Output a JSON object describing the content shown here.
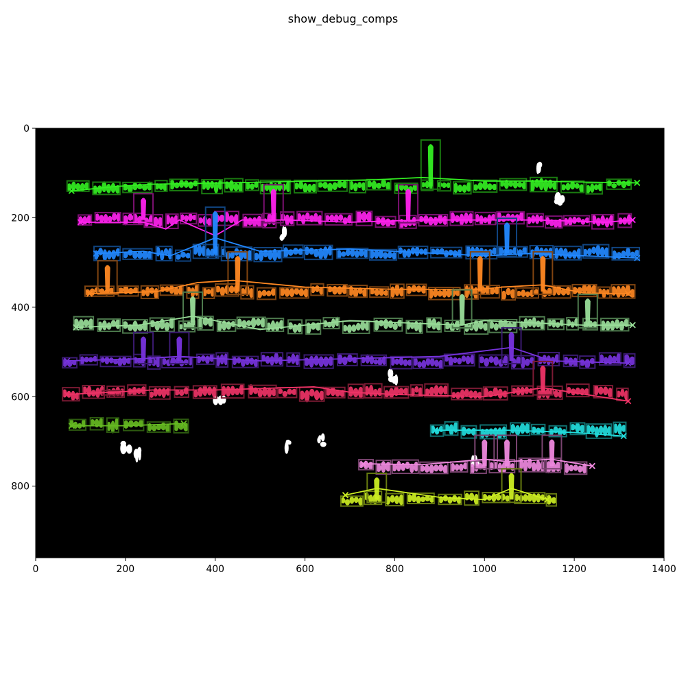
{
  "figure": {
    "title": "show_debug_comps"
  },
  "chart_data": {
    "type": "scatter",
    "title": "show_debug_comps",
    "xlabel": "",
    "ylabel": "",
    "xlim": [
      0,
      1400
    ],
    "ylim": [
      960,
      0
    ],
    "grid": false,
    "background": "#000000",
    "x_ticks": [
      0,
      200,
      400,
      600,
      800,
      1000,
      1200,
      1400
    ],
    "y_ticks": [
      0,
      200,
      400,
      600,
      800
    ],
    "series": [
      {
        "color": "#33ee22",
        "edge": "#1a7a10",
        "y": 130,
        "x0": 70,
        "x1": 1340,
        "path": [
          [
            80,
            140
          ],
          [
            180,
            130
          ],
          [
            260,
            125
          ],
          [
            380,
            123
          ],
          [
            520,
            120
          ],
          [
            760,
            115
          ],
          [
            860,
            110
          ],
          [
            1000,
            118
          ],
          [
            1120,
            118
          ],
          [
            1200,
            120
          ],
          [
            1340,
            122
          ]
        ],
        "tall": [
          [
            880,
            60
          ]
        ]
      },
      {
        "color": "#ff22ee",
        "edge": "#7a1070",
        "y": 205,
        "x0": 95,
        "x1": 1330,
        "path": [
          [
            100,
            210
          ],
          [
            240,
            210
          ],
          [
            290,
            225
          ],
          [
            320,
            205
          ],
          [
            400,
            240
          ],
          [
            460,
            205
          ],
          [
            560,
            205
          ],
          [
            700,
            210
          ],
          [
            860,
            205
          ],
          [
            1000,
            205
          ],
          [
            1120,
            205
          ],
          [
            1270,
            210
          ],
          [
            1330,
            205
          ]
        ],
        "tall": [
          [
            240,
            180
          ],
          [
            530,
            160
          ],
          [
            830,
            160
          ]
        ]
      },
      {
        "color": "#2288ff",
        "edge": "#104480",
        "y": 280,
        "x0": 130,
        "x1": 1345,
        "path": [
          [
            135,
            280
          ],
          [
            240,
            275
          ],
          [
            300,
            285
          ],
          [
            400,
            245
          ],
          [
            500,
            275
          ],
          [
            700,
            270
          ],
          [
            1000,
            285
          ],
          [
            1100,
            280
          ],
          [
            1340,
            290
          ]
        ],
        "tall": [
          [
            400,
            210
          ],
          [
            1050,
            235
          ]
        ]
      },
      {
        "color": "#ff8822",
        "edge": "#804410",
        "y": 365,
        "x0": 110,
        "x1": 1335,
        "path": [
          [
            120,
            370
          ],
          [
            270,
            365
          ],
          [
            360,
            345
          ],
          [
            440,
            340
          ],
          [
            600,
            355
          ],
          [
            800,
            360
          ],
          [
            990,
            360
          ],
          [
            1040,
            355
          ],
          [
            1130,
            350
          ],
          [
            1220,
            368
          ],
          [
            1320,
            370
          ]
        ],
        "tall": [
          [
            160,
            330
          ],
          [
            450,
            310
          ],
          [
            990,
            310
          ],
          [
            1130,
            310
          ]
        ]
      },
      {
        "color": "#99dd99",
        "edge": "#4d7a4d",
        "y": 440,
        "x0": 85,
        "x1": 1335,
        "path": [
          [
            90,
            445
          ],
          [
            230,
            440
          ],
          [
            350,
            420
          ],
          [
            500,
            450
          ],
          [
            700,
            430
          ],
          [
            950,
            440
          ],
          [
            1000,
            430
          ],
          [
            1220,
            440
          ],
          [
            1330,
            440
          ]
        ],
        "tall": [
          [
            350,
            400
          ],
          [
            950,
            395
          ],
          [
            1230,
            405
          ]
        ]
      },
      {
        "color": "#7733dd",
        "edge": "#3a1a70",
        "y": 520,
        "x0": 60,
        "x1": 1335,
        "path": [
          [
            70,
            520
          ],
          [
            240,
            515
          ],
          [
            320,
            510
          ],
          [
            500,
            520
          ],
          [
            700,
            515
          ],
          [
            900,
            510
          ],
          [
            1060,
            490
          ],
          [
            1150,
            520
          ],
          [
            1320,
            525
          ]
        ],
        "tall": [
          [
            240,
            490
          ],
          [
            320,
            490
          ],
          [
            1060,
            480
          ]
        ]
      },
      {
        "color": "#ee3366",
        "edge": "#7a1a33",
        "y": 590,
        "x0": 60,
        "x1": 1320,
        "path": [
          [
            70,
            595
          ],
          [
            170,
            590
          ],
          [
            260,
            585
          ],
          [
            400,
            585
          ],
          [
            620,
            578
          ],
          [
            700,
            590
          ],
          [
            800,
            595
          ],
          [
            1000,
            600
          ],
          [
            1130,
            580
          ],
          [
            1320,
            610
          ]
        ],
        "tall": [
          [
            170,
            620
          ],
          [
            1130,
            555
          ]
        ]
      },
      {
        "color": "#66bb22",
        "edge": "#2d5a10",
        "y": 665,
        "x0": 75,
        "x1": 340,
        "path": [
          [
            80,
            665
          ],
          [
            200,
            665
          ],
          [
            330,
            660
          ]
        ],
        "tall": []
      },
      {
        "color": "#22dddd",
        "edge": "#107070",
        "y": 675,
        "x0": 880,
        "x1": 1315,
        "path": [
          [
            890,
            675
          ],
          [
            1050,
            675
          ],
          [
            1200,
            680
          ],
          [
            1310,
            688
          ]
        ],
        "tall": []
      },
      {
        "color": "#ee88dd",
        "edge": "#7a4470",
        "y": 755,
        "x0": 720,
        "x1": 1245,
        "path": [
          [
            730,
            750
          ],
          [
            860,
            752
          ],
          [
            1000,
            740
          ],
          [
            1050,
            745
          ],
          [
            1150,
            740
          ],
          [
            1240,
            755
          ]
        ],
        "tall": [
          [
            1000,
            720
          ],
          [
            1050,
            720
          ],
          [
            1150,
            720
          ]
        ]
      },
      {
        "color": "#ccee22",
        "edge": "#667a10",
        "y": 830,
        "x0": 680,
        "x1": 1160,
        "path": [
          [
            690,
            820
          ],
          [
            760,
            805
          ],
          [
            900,
            825
          ],
          [
            1000,
            830
          ],
          [
            1060,
            805
          ],
          [
            1140,
            830
          ]
        ],
        "tall": [
          [
            760,
            805
          ],
          [
            1060,
            795
          ]
        ]
      }
    ],
    "white_noise": [
      [
        1120,
        90
      ],
      [
        1170,
        165
      ],
      [
        555,
        235
      ],
      [
        410,
        610
      ],
      [
        200,
        710
      ],
      [
        230,
        730
      ],
      [
        800,
        555
      ],
      [
        640,
        700
      ],
      [
        560,
        710
      ],
      [
        980,
        745
      ]
    ]
  }
}
